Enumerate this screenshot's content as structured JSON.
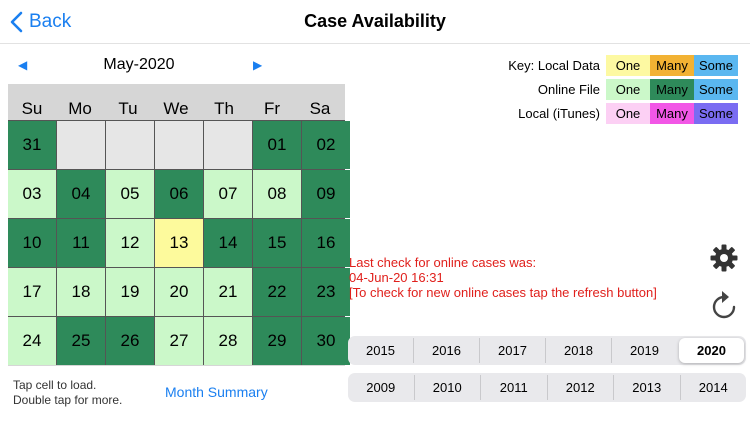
{
  "nav": {
    "back_label": "Back",
    "title": "Case Availability"
  },
  "calendar": {
    "month_label": "May-2020",
    "prev_arrow": "◀",
    "next_arrow": "▶",
    "weekdays": [
      "Su",
      "Mo",
      "Tu",
      "We",
      "Th",
      "Fr",
      "Sa"
    ],
    "weeks": [
      [
        {
          "day": "31",
          "state": "many"
        },
        {
          "day": "",
          "state": "empty"
        },
        {
          "day": "",
          "state": "empty"
        },
        {
          "day": "",
          "state": "empty"
        },
        {
          "day": "",
          "state": "empty"
        },
        {
          "day": "01",
          "state": "many"
        },
        {
          "day": "02",
          "state": "many"
        }
      ],
      [
        {
          "day": "03",
          "state": "one"
        },
        {
          "day": "04",
          "state": "many"
        },
        {
          "day": "05",
          "state": "one"
        },
        {
          "day": "06",
          "state": "many"
        },
        {
          "day": "07",
          "state": "one"
        },
        {
          "day": "08",
          "state": "one"
        },
        {
          "day": "09",
          "state": "many"
        }
      ],
      [
        {
          "day": "10",
          "state": "many"
        },
        {
          "day": "11",
          "state": "many"
        },
        {
          "day": "12",
          "state": "one"
        },
        {
          "day": "13",
          "state": "today"
        },
        {
          "day": "14",
          "state": "many"
        },
        {
          "day": "15",
          "state": "many"
        },
        {
          "day": "16",
          "state": "many"
        }
      ],
      [
        {
          "day": "17",
          "state": "one"
        },
        {
          "day": "18",
          "state": "one"
        },
        {
          "day": "19",
          "state": "one"
        },
        {
          "day": "20",
          "state": "one"
        },
        {
          "day": "21",
          "state": "one"
        },
        {
          "day": "22",
          "state": "many"
        },
        {
          "day": "23",
          "state": "many"
        }
      ],
      [
        {
          "day": "24",
          "state": "one"
        },
        {
          "day": "25",
          "state": "many"
        },
        {
          "day": "26",
          "state": "many"
        },
        {
          "day": "27",
          "state": "one"
        },
        {
          "day": "28",
          "state": "one"
        },
        {
          "day": "29",
          "state": "many"
        },
        {
          "day": "30",
          "state": "many"
        }
      ]
    ],
    "hint": "Tap cell to load.\nDouble tap for more.",
    "month_summary": "Month Summary"
  },
  "key": {
    "rows": [
      {
        "label": "Key: Local Data",
        "one": "One",
        "many": "Many",
        "some": "Some",
        "colors": {
          "one": "#fdf9a2",
          "many": "#f2b233",
          "some": "#5ab7f0"
        }
      },
      {
        "label": "Online File",
        "one": "One",
        "many": "Many",
        "some": "Some",
        "colors": {
          "one": "#cbf8c9",
          "many": "#2e8a5a",
          "some": "#5ab7f0"
        }
      },
      {
        "label": "Local (iTunes)",
        "one": "One",
        "many": "Many",
        "some": "Some",
        "colors": {
          "one": "#fcd0f4",
          "many": "#f257e6",
          "some": "#7a6cf2"
        }
      }
    ]
  },
  "status": {
    "message": "Last check for online cases was:\n04-Jun-20 16:31\n[To check for new online cases tap the refresh button]"
  },
  "icons": {
    "settings": "gear-icon",
    "refresh": "refresh-icon"
  },
  "years": {
    "row1": [
      "2015",
      "2016",
      "2017",
      "2018",
      "2019",
      "2020"
    ],
    "row2": [
      "2009",
      "2010",
      "2011",
      "2012",
      "2013",
      "2014"
    ],
    "selected": "2020"
  },
  "colors": {
    "accent": "#1a7ff0",
    "many": "#2e8a5a",
    "one": "#cbf8c9",
    "today": "#fdfa9c",
    "status": "#e0201c"
  }
}
